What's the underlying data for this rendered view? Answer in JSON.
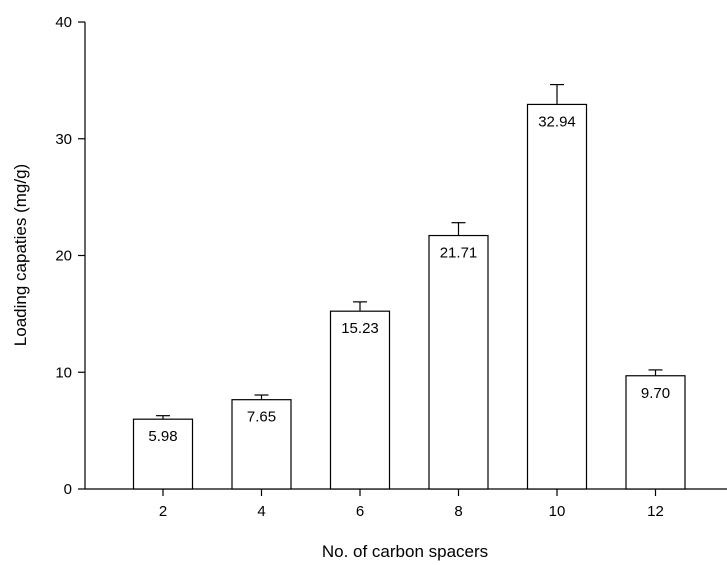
{
  "chart_data": {
    "type": "bar",
    "categories": [
      "2",
      "4",
      "6",
      "8",
      "10",
      "12"
    ],
    "values": [
      5.98,
      7.65,
      15.23,
      21.71,
      32.94,
      9.7
    ],
    "value_labels": [
      "5.98",
      "7.65",
      "15.23",
      "21.71",
      "32.94",
      "9.70"
    ],
    "errors": [
      0.3,
      0.4,
      0.8,
      1.1,
      1.7,
      0.5
    ],
    "xlabel": "No. of carbon spacers",
    "ylabel": "Loading capaties (mg/g)",
    "ylim": [
      0,
      40
    ],
    "yticks": [
      0,
      10,
      20,
      30,
      40
    ],
    "grid": false,
    "bar_color": "#ffffff",
    "edge_color": "#000000"
  }
}
